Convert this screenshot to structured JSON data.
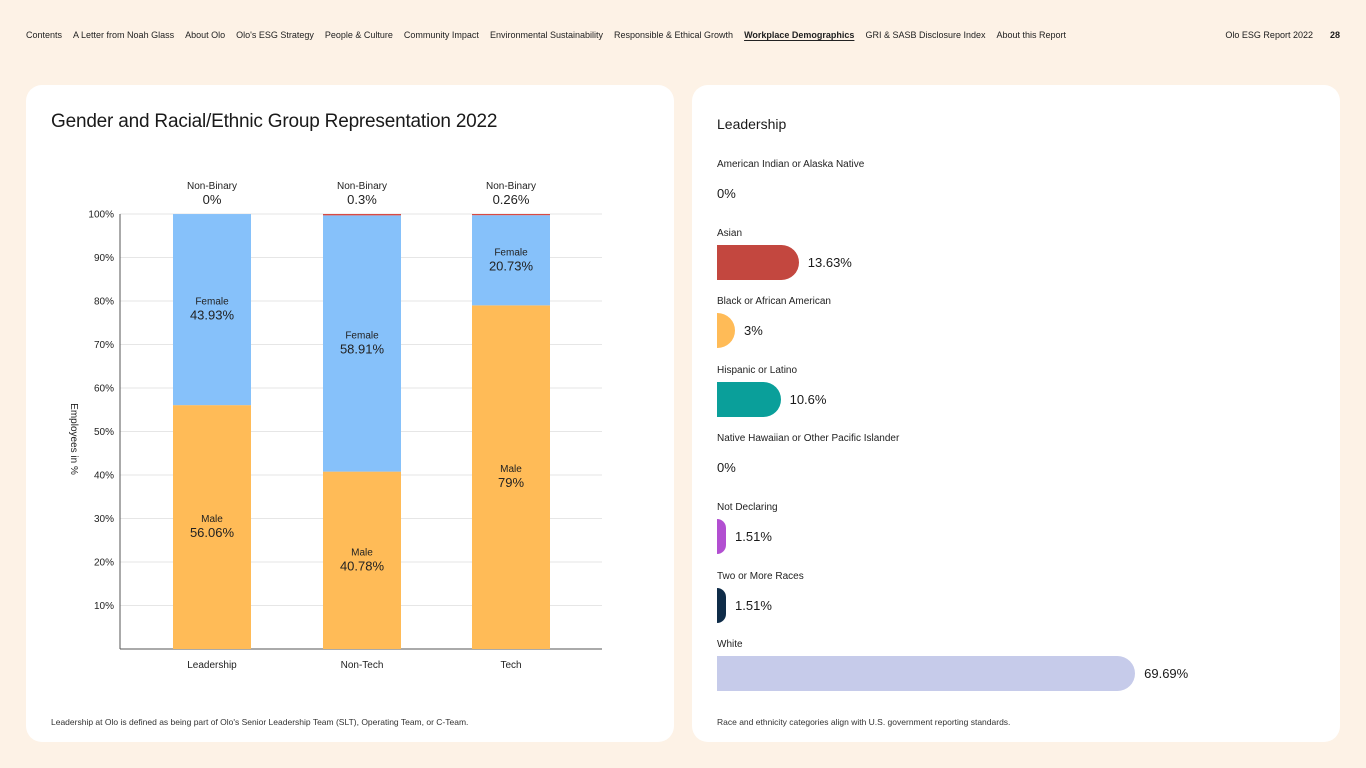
{
  "nav": {
    "links": [
      "Contents",
      "A Letter from Noah Glass",
      "About Olo",
      "Olo's ESG Strategy",
      "People & Culture",
      "Community Impact",
      "Environmental Sustainability",
      "Responsible & Ethical Growth",
      "Workplace Demographics",
      "GRI & SASB Disclosure Index",
      "About this Report"
    ],
    "active_index": 8,
    "report_title": "Olo ESG Report 2022",
    "page_number": "28"
  },
  "left_card": {
    "title": "Gender and Racial/Ethnic Group Representation 2022",
    "footnote": "Leadership at Olo is defined as being part of Olo's Senior Leadership Team (SLT), Operating Team, or C-Team."
  },
  "chart_data": {
    "type": "bar",
    "stacked": true,
    "title": "Gender and Racial/Ethnic Group Representation 2022",
    "ylabel": "Employees in %",
    "xlabel": "",
    "ylim": [
      0,
      100
    ],
    "yticks": [
      "10%",
      "20%",
      "30%",
      "40%",
      "50%",
      "60%",
      "70%",
      "80%",
      "90%",
      "100%"
    ],
    "categories": [
      "Leadership",
      "Non-Tech",
      "Tech"
    ],
    "series": [
      {
        "name": "Male",
        "color": "#ffbb57",
        "values": [
          56.06,
          40.78,
          79
        ],
        "labels": [
          "56.06%",
          "40.78%",
          "79%"
        ]
      },
      {
        "name": "Female",
        "color": "#86c1fa",
        "values": [
          43.93,
          58.91,
          20.73
        ],
        "labels": [
          "43.93%",
          "58.91%",
          "20.73%"
        ]
      },
      {
        "name": "Non-Binary",
        "color": "#d9433b",
        "values": [
          0,
          0.3,
          0.26
        ],
        "labels": [
          "0%",
          "0.3%",
          "0.26%"
        ]
      }
    ],
    "grid": true
  },
  "right_card": {
    "title": "Leadership",
    "footnote": "Race and ethnicity categories align with U.S. government reporting standards.",
    "items": [
      {
        "label": "American Indian or Alaska Native",
        "value": 0,
        "value_text": "0%",
        "color": "#cccccc"
      },
      {
        "label": "Asian",
        "value": 13.63,
        "value_text": "13.63%",
        "color": "#c3473f"
      },
      {
        "label": "Black or African American",
        "value": 3,
        "value_text": "3%",
        "color": "#ffbb57"
      },
      {
        "label": "Hispanic or Latino",
        "value": 10.6,
        "value_text": "10.6%",
        "color": "#0a9f9a"
      },
      {
        "label": "Native Hawaiian or Other Pacific Islander",
        "value": 0,
        "value_text": "0%",
        "color": "#cccccc"
      },
      {
        "label": "Not Declaring",
        "value": 1.51,
        "value_text": "1.51%",
        "color": "#b24fd1"
      },
      {
        "label": "Two or More Races",
        "value": 1.51,
        "value_text": "1.51%",
        "color": "#0f2c48"
      },
      {
        "label": "White",
        "value": 69.69,
        "value_text": "69.69%",
        "color": "#c6cbea"
      }
    ]
  }
}
